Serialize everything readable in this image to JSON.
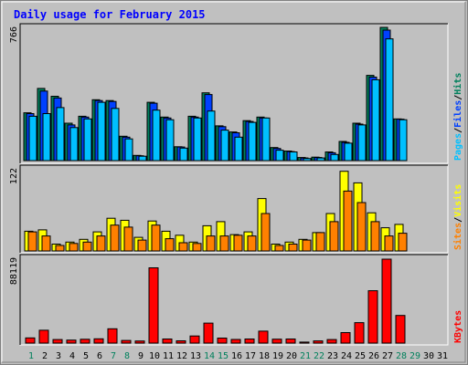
{
  "chart_data": {
    "type": "bar",
    "title": "Daily usage for February 2015",
    "categories": [
      "1",
      "2",
      "3",
      "4",
      "5",
      "6",
      "7",
      "8",
      "9",
      "10",
      "11",
      "12",
      "13",
      "14",
      "15",
      "16",
      "17",
      "18",
      "19",
      "20",
      "21",
      "22",
      "23",
      "24",
      "25",
      "26",
      "27",
      "28",
      "29",
      "30",
      "31"
    ],
    "weekend_days": [
      1,
      7,
      8,
      14,
      15,
      21,
      22,
      28,
      29
    ],
    "bar_days": 28,
    "panels": [
      {
        "name": "hits-files-pages",
        "ymax_label": "766",
        "ylim": [
          0,
          766
        ],
        "series": [
          {
            "name": "Hits",
            "color": "#00805c",
            "values": [
              275,
              415,
              370,
              215,
              255,
              350,
              345,
              140,
              30,
              335,
              250,
              80,
              255,
              390,
              200,
              165,
              230,
              250,
              75,
              55,
              18,
              20,
              50,
              110,
              215,
              490,
              766,
              240
            ]
          },
          {
            "name": "Files",
            "color": "#0040ff",
            "values": [
              270,
              400,
              360,
              205,
              250,
              345,
              340,
              135,
              28,
              330,
              245,
              78,
              250,
              380,
              195,
              160,
              225,
              245,
              70,
              52,
              15,
              18,
              45,
              105,
              210,
              480,
              750,
              238
            ]
          },
          {
            "name": "Pages",
            "color": "#00c0ff",
            "values": [
              255,
              270,
              305,
              190,
              240,
              335,
              300,
              125,
              25,
              290,
              235,
              72,
              245,
              285,
              175,
              135,
              220,
              245,
              60,
              50,
              12,
              15,
              35,
              100,
              205,
              465,
              700,
              235
            ]
          }
        ]
      },
      {
        "name": "visits-sites",
        "ymax_label": "122",
        "ylim": [
          0,
          122
        ],
        "series": [
          {
            "name": "Visits",
            "color": "#ffff00",
            "values": [
              29,
              31,
              10,
              13,
              17,
              28,
              48,
              45,
              20,
              44,
              29,
              23,
              13,
              37,
              43,
              24,
              28,
              77,
              10,
              13,
              17,
              27,
              55,
              117,
              100,
              56,
              34,
              39
            ]
          },
          {
            "name": "Sites",
            "color": "#ff8000",
            "values": [
              28,
              22,
              8,
              11,
              13,
              22,
              38,
              35,
              16,
              38,
              18,
              12,
              11,
              22,
              22,
              23,
              22,
              55,
              8,
              10,
              16,
              27,
              43,
              88,
              71,
              43,
              22,
              26
            ]
          }
        ]
      },
      {
        "name": "kbytes",
        "ymax_label": "88119",
        "ylim": [
          0,
          88119
        ],
        "series": [
          {
            "name": "KBytes",
            "color": "#ff0000",
            "values": [
              5500,
              13500,
              3700,
              3200,
              4000,
              4500,
              15000,
              2800,
              2200,
              79000,
              4300,
              2400,
              7500,
              21000,
              5300,
              3800,
              4300,
              12500,
              4100,
              4300,
              1100,
              2300,
              3700,
              11000,
              21500,
              55000,
              88119,
              29000
            ]
          }
        ]
      }
    ],
    "colors": {
      "background": "#c0c0c0",
      "plot_background": "#ffffff",
      "title": "#0000ff",
      "weekday_label": "#000000",
      "weekend_label": "#00805c",
      "separator": "#ffffff"
    }
  }
}
